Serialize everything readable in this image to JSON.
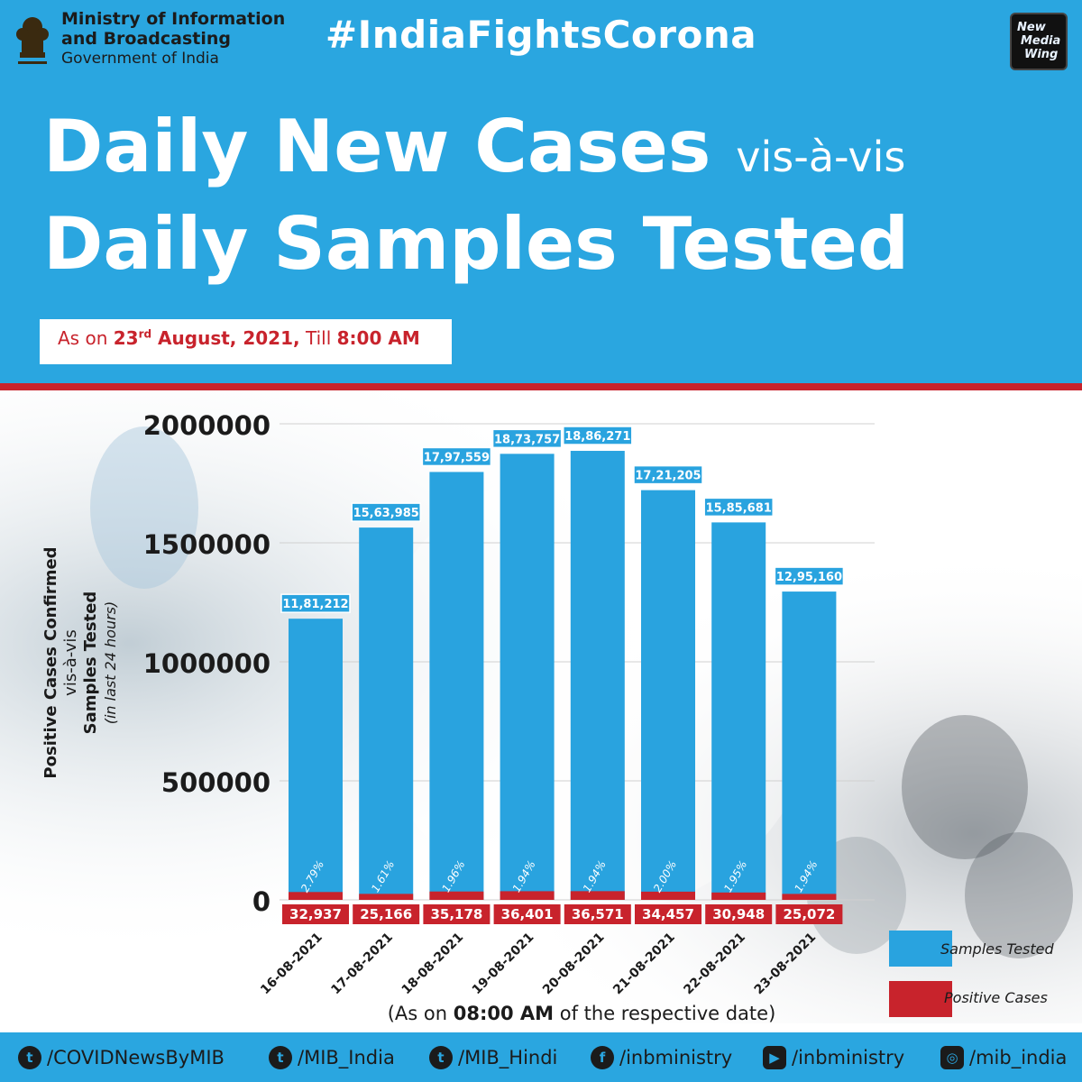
{
  "header": {
    "ministry_line1": "Ministry of Information",
    "ministry_line2": "and Broadcasting",
    "ministry_line3": "Government of India",
    "hashtag": "#IndiaFightsCorona",
    "logo_text": [
      "New",
      "Media",
      "Wing"
    ],
    "title_part1": "Daily New Cases ",
    "title_part2": "vis-à-vis",
    "title_line2": "Daily Samples Tested",
    "asof_prefix": "As on ",
    "asof_day": "23",
    "asof_sup": "rd",
    "asof_date": " August, 2021,",
    "asof_mid": " Till ",
    "asof_time": "8:00 AM"
  },
  "chart_data": {
    "type": "bar",
    "categories": [
      "16-08-2021",
      "17-08-2021",
      "18-08-2021",
      "19-08-2021",
      "20-08-2021",
      "21-08-2021",
      "22-08-2021",
      "23-08-2021"
    ],
    "series": [
      {
        "name": "Samples Tested",
        "values": [
          1181212,
          1563985,
          1797559,
          1873757,
          1886271,
          1721205,
          1585681,
          1295160
        ],
        "labels": [
          "11,81,212",
          "15,63,985",
          "17,97,559",
          "18,73,757",
          "18,86,271",
          "17,21,205",
          "15,85,681",
          "12,95,160"
        ],
        "color": "#29a3df"
      },
      {
        "name": "Positive Cases",
        "values": [
          32937,
          25166,
          35178,
          36401,
          36571,
          34457,
          30948,
          25072
        ],
        "labels": [
          "32,937",
          "25,166",
          "35,178",
          "36,401",
          "36,571",
          "34,457",
          "30,948",
          "25,072"
        ],
        "color": "#c8232c"
      }
    ],
    "positivity": [
      "2.79%",
      "1.61%",
      "1.96%",
      "1.94%",
      "1.94%",
      "2.00%",
      "1.95%",
      "1.94%"
    ],
    "yticks": [
      "2000000",
      "1500000",
      "1000000",
      "500000",
      "0"
    ],
    "ytick_values": [
      2000000,
      1500000,
      1000000,
      500000,
      0
    ],
    "ylim": [
      0,
      2000000
    ],
    "grid": true,
    "ylabel_line1": "Positive Cases Confirmed",
    "ylabel_line2": "vis-à-vis",
    "ylabel_line3": "Samples Tested",
    "ylabel_line4": "(in last 24 hours)",
    "legend_position": "bottom-right",
    "footnote_prefix": "(As on ",
    "footnote_time": "08:00 AM",
    "footnote_suffix": " of the respective date)"
  },
  "footer": {
    "handles": [
      "/COVIDNewsByMIB",
      "/MIB_India",
      "/MIB_Hindi",
      "/inbministry",
      "/inbministry",
      "/mib_india"
    ],
    "icons": [
      "twitter-icon",
      "twitter-icon",
      "twitter-icon",
      "facebook-icon",
      "youtube-icon",
      "instagram-icon"
    ]
  },
  "colors": {
    "brand_blue": "#2aa6e0",
    "red": "#c8232c"
  }
}
